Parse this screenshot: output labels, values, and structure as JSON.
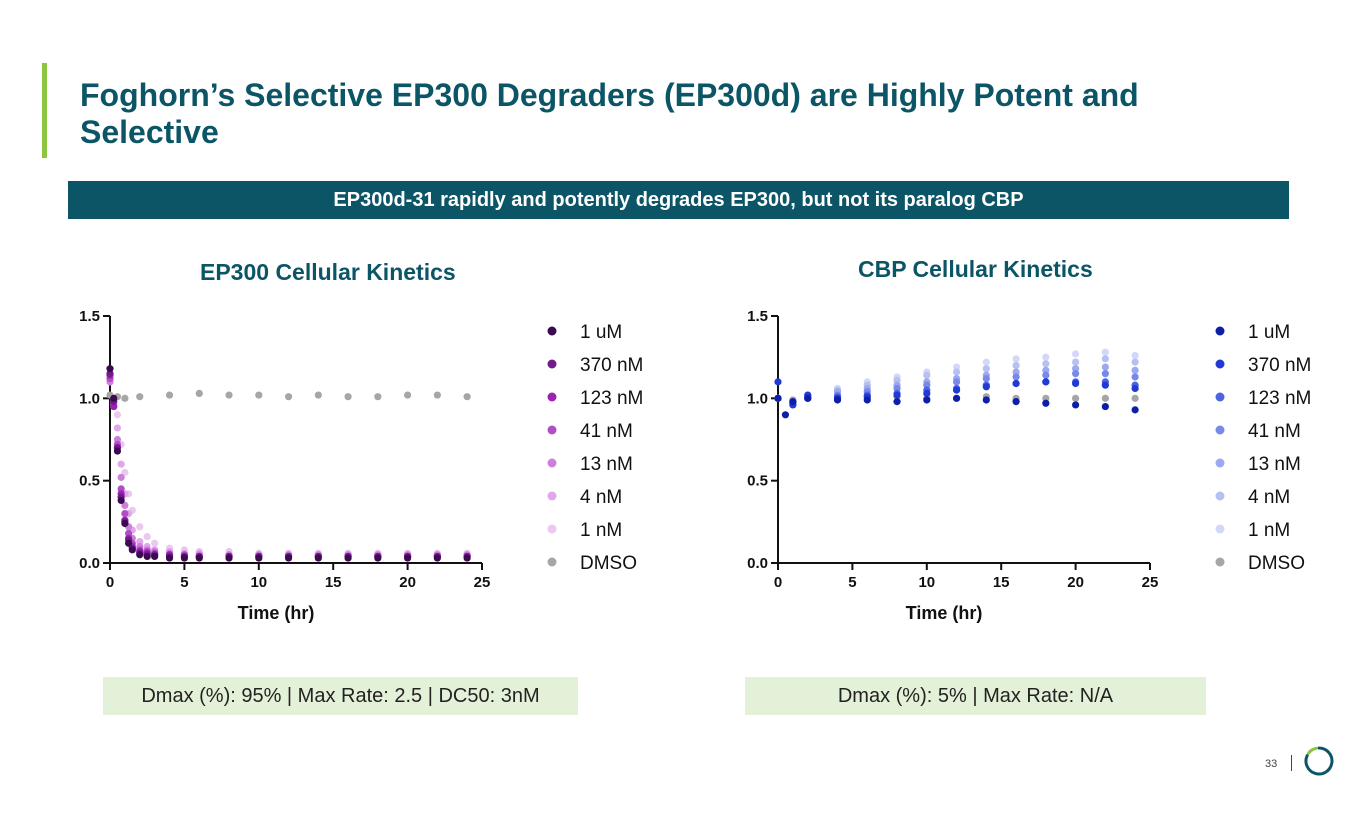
{
  "slide": {
    "title": "Foghorn’s Selective EP300 Degraders (EP300d) are Highly Potent and Selective",
    "banner": "EP300d-31 rapidly and potently degrades EP300, but not its paralog CBP",
    "page_number": "33",
    "accent_color": "#8cc63f",
    "brand_color": "#0b5566"
  },
  "chart_data": [
    {
      "id": "ep300",
      "type": "scatter",
      "title": "EP300 Cellular Kinetics",
      "xlabel": "Time (hr)",
      "ylabel": "",
      "xlim": [
        0,
        25
      ],
      "ylim": [
        0,
        1.5
      ],
      "xticks": [
        0,
        5,
        10,
        15,
        20,
        25
      ],
      "yticks": [
        0.0,
        0.5,
        1.0,
        1.5
      ],
      "xtick_labels": [
        "0",
        "5",
        "10",
        "15",
        "20",
        "25"
      ],
      "ytick_labels": [
        "0.0",
        "0.5",
        "1.0",
        "1.5"
      ],
      "legend_position": "right",
      "summary": "Dmax (%): 95% | Max Rate: 2.5 | DC50: 3nM",
      "series": [
        {
          "name": "DMSO",
          "color": "#a6a6a6",
          "x": [
            0,
            0.5,
            1,
            2,
            4,
            6,
            8,
            10,
            12,
            14,
            16,
            18,
            20,
            22,
            24
          ],
          "y": [
            1.02,
            1.01,
            1.0,
            1.01,
            1.02,
            1.03,
            1.02,
            1.02,
            1.01,
            1.02,
            1.01,
            1.01,
            1.02,
            1.02,
            1.01
          ]
        },
        {
          "name": "1 nM",
          "color": "#ecc8f0",
          "x": [
            0,
            0.25,
            0.5,
            0.75,
            1,
            1.25,
            1.5,
            2,
            2.5,
            3,
            4,
            5,
            6,
            8,
            10,
            12,
            14,
            16,
            18,
            20,
            22,
            24
          ],
          "y": [
            1.12,
            1.0,
            0.9,
            0.72,
            0.55,
            0.42,
            0.32,
            0.22,
            0.16,
            0.12,
            0.09,
            0.08,
            0.07,
            0.07,
            0.06,
            0.06,
            0.06,
            0.06,
            0.06,
            0.06,
            0.06,
            0.06
          ]
        },
        {
          "name": "4 nM",
          "color": "#e0a8ea",
          "x": [
            0,
            0.25,
            0.5,
            0.75,
            1,
            1.25,
            1.5,
            2,
            2.5,
            3,
            4,
            5,
            6,
            8,
            10,
            12,
            14,
            16,
            18,
            20,
            22,
            24
          ],
          "y": [
            1.1,
            0.98,
            0.82,
            0.6,
            0.42,
            0.3,
            0.2,
            0.13,
            0.1,
            0.08,
            0.07,
            0.06,
            0.06,
            0.05,
            0.05,
            0.05,
            0.05,
            0.05,
            0.05,
            0.05,
            0.05,
            0.05
          ]
        },
        {
          "name": "13 nM",
          "color": "#cc7fdb",
          "x": [
            0,
            0.25,
            0.5,
            0.75,
            1,
            1.25,
            1.5,
            2,
            2.5,
            3,
            4,
            5,
            6,
            8,
            10,
            12,
            14,
            16,
            18,
            20,
            22,
            24
          ],
          "y": [
            1.1,
            0.96,
            0.75,
            0.52,
            0.35,
            0.22,
            0.15,
            0.1,
            0.08,
            0.07,
            0.06,
            0.05,
            0.05,
            0.05,
            0.05,
            0.05,
            0.05,
            0.05,
            0.05,
            0.05,
            0.05,
            0.05
          ]
        },
        {
          "name": "41 nM",
          "color": "#b04ec6",
          "x": [
            0,
            0.25,
            0.5,
            0.75,
            1,
            1.25,
            1.5,
            2,
            2.5,
            3,
            4,
            5,
            6,
            8,
            10,
            12,
            14,
            16,
            18,
            20,
            22,
            24
          ],
          "y": [
            1.12,
            0.95,
            0.72,
            0.45,
            0.3,
            0.18,
            0.12,
            0.08,
            0.07,
            0.06,
            0.05,
            0.05,
            0.04,
            0.04,
            0.04,
            0.04,
            0.04,
            0.04,
            0.04,
            0.04,
            0.04,
            0.04
          ]
        },
        {
          "name": "123 nM",
          "color": "#9b22b5",
          "x": [
            0,
            0.25,
            0.5,
            0.75,
            1,
            1.25,
            1.5,
            2,
            2.5,
            3,
            4,
            5,
            6,
            8,
            10,
            12,
            14,
            16,
            18,
            20,
            22,
            24
          ],
          "y": [
            1.14,
            0.95,
            0.7,
            0.42,
            0.26,
            0.15,
            0.1,
            0.07,
            0.06,
            0.05,
            0.05,
            0.04,
            0.04,
            0.04,
            0.04,
            0.04,
            0.04,
            0.04,
            0.04,
            0.04,
            0.04,
            0.04
          ]
        },
        {
          "name": "370 nM",
          "color": "#731a8c",
          "x": [
            0,
            0.25,
            0.5,
            0.75,
            1,
            1.25,
            1.5,
            2,
            2.5,
            3,
            4,
            5,
            6,
            8,
            10,
            12,
            14,
            16,
            18,
            20,
            22,
            24
          ],
          "y": [
            1.15,
            0.98,
            0.7,
            0.4,
            0.25,
            0.14,
            0.09,
            0.06,
            0.05,
            0.05,
            0.04,
            0.04,
            0.04,
            0.04,
            0.04,
            0.04,
            0.04,
            0.04,
            0.04,
            0.04,
            0.04,
            0.04
          ]
        },
        {
          "name": "1 uM",
          "color": "#3b0a4f",
          "x": [
            0,
            0.25,
            0.5,
            0.75,
            1,
            1.25,
            1.5,
            2,
            2.5,
            3,
            4,
            5,
            6,
            8,
            10,
            12,
            14,
            16,
            18,
            20,
            22,
            24
          ],
          "y": [
            1.18,
            1.0,
            0.68,
            0.38,
            0.24,
            0.12,
            0.08,
            0.05,
            0.04,
            0.04,
            0.03,
            0.03,
            0.03,
            0.03,
            0.03,
            0.03,
            0.03,
            0.03,
            0.03,
            0.03,
            0.03,
            0.03
          ]
        }
      ]
    },
    {
      "id": "cbp",
      "type": "scatter",
      "title": "CBP Cellular Kinetics",
      "xlabel": "Time (hr)",
      "ylabel": "",
      "xlim": [
        0,
        25
      ],
      "ylim": [
        0,
        1.5
      ],
      "xticks": [
        0,
        5,
        10,
        15,
        20,
        25
      ],
      "yticks": [
        0.0,
        0.5,
        1.0,
        1.5
      ],
      "xtick_labels": [
        "0",
        "5",
        "10",
        "15",
        "20",
        "25"
      ],
      "ytick_labels": [
        "0.0",
        "0.5",
        "1.0",
        "1.5"
      ],
      "legend_position": "right",
      "summary": "Dmax (%): 5% | Max Rate: N/A",
      "series": [
        {
          "name": "DMSO",
          "color": "#a6a6a6",
          "x": [
            0,
            1,
            2,
            4,
            6,
            8,
            10,
            12,
            14,
            16,
            18,
            20,
            22,
            24
          ],
          "y": [
            1.0,
            0.99,
            1.0,
            1.0,
            1.0,
            1.01,
            1.0,
            1.0,
            1.01,
            1.0,
            1.0,
            1.0,
            1.0,
            1.0
          ]
        },
        {
          "name": "1 nM",
          "color": "#d3d8f8",
          "x": [
            0,
            1,
            2,
            4,
            6,
            8,
            10,
            12,
            14,
            16,
            18,
            20,
            22,
            24
          ],
          "y": [
            1.0,
            0.98,
            1.02,
            1.06,
            1.1,
            1.13,
            1.16,
            1.19,
            1.22,
            1.24,
            1.25,
            1.27,
            1.28,
            1.26
          ]
        },
        {
          "name": "4 nM",
          "color": "#b7c0f3",
          "x": [
            0,
            1,
            2,
            4,
            6,
            8,
            10,
            12,
            14,
            16,
            18,
            20,
            22,
            24
          ],
          "y": [
            1.0,
            0.98,
            1.02,
            1.05,
            1.08,
            1.11,
            1.14,
            1.16,
            1.18,
            1.2,
            1.21,
            1.22,
            1.24,
            1.22
          ]
        },
        {
          "name": "13 nM",
          "color": "#9ca9ef",
          "x": [
            0,
            1,
            2,
            4,
            6,
            8,
            10,
            12,
            14,
            16,
            18,
            20,
            22,
            24
          ],
          "y": [
            1.0,
            0.98,
            1.01,
            1.04,
            1.06,
            1.08,
            1.1,
            1.12,
            1.14,
            1.16,
            1.17,
            1.18,
            1.19,
            1.17
          ]
        },
        {
          "name": "41 nM",
          "color": "#7889e8",
          "x": [
            0,
            1,
            2,
            4,
            6,
            8,
            10,
            12,
            14,
            16,
            18,
            20,
            22,
            24
          ],
          "y": [
            1.0,
            0.97,
            1.01,
            1.02,
            1.04,
            1.06,
            1.08,
            1.1,
            1.12,
            1.13,
            1.14,
            1.15,
            1.15,
            1.13
          ]
        },
        {
          "name": "123 nM",
          "color": "#4f63de",
          "x": [
            0,
            1,
            2,
            4,
            6,
            8,
            10,
            12,
            14,
            16,
            18,
            20,
            22,
            24
          ],
          "y": [
            1.0,
            0.97,
            1.0,
            1.01,
            1.02,
            1.03,
            1.05,
            1.06,
            1.08,
            1.09,
            1.1,
            1.1,
            1.1,
            1.08
          ]
        },
        {
          "name": "370 nM",
          "color": "#1f3ad6",
          "x": [
            0,
            1,
            2,
            4,
            6,
            8,
            10,
            12,
            14,
            16,
            18,
            20,
            22,
            24
          ],
          "y": [
            1.1,
            0.96,
            1.02,
            1.0,
            1.01,
            1.02,
            1.03,
            1.05,
            1.07,
            1.09,
            1.1,
            1.09,
            1.08,
            1.06
          ]
        },
        {
          "name": "1 uM",
          "color": "#0d1ea8",
          "x": [
            0,
            0.5,
            1,
            2,
            4,
            6,
            8,
            10,
            12,
            14,
            16,
            18,
            20,
            22,
            24
          ],
          "y": [
            1.0,
            0.9,
            0.98,
            1.0,
            0.99,
            0.99,
            0.98,
            0.99,
            1.0,
            0.99,
            0.98,
            0.97,
            0.96,
            0.95,
            0.93
          ]
        }
      ]
    }
  ]
}
